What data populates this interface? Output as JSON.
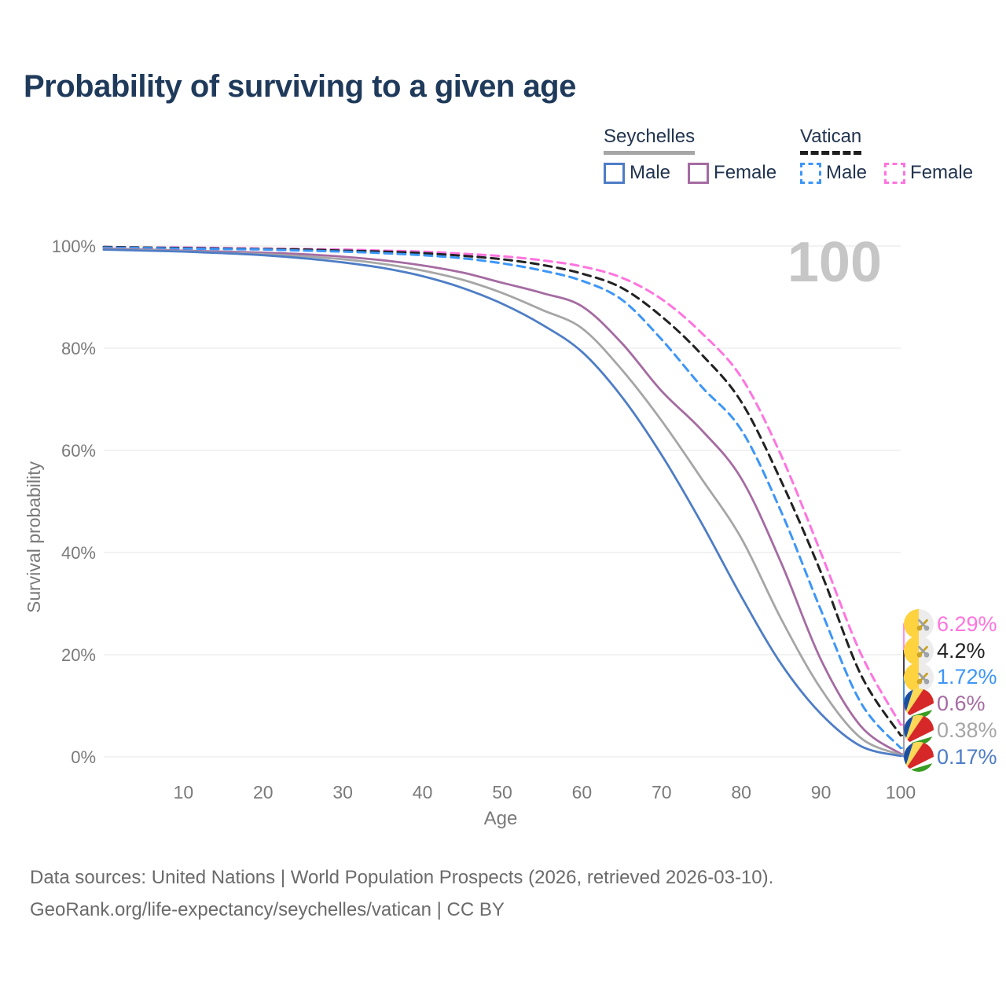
{
  "title": "Probability of surviving to a given age",
  "legend": {
    "groups": [
      {
        "title": "Seychelles",
        "items": [
          {
            "label": "Male",
            "series": 5
          },
          {
            "label": "Female",
            "series": 3
          }
        ]
      },
      {
        "title": "Vatican",
        "items": [
          {
            "label": "Male",
            "series": 2
          },
          {
            "label": "Female",
            "series": 0
          }
        ]
      }
    ]
  },
  "age_counter": "100",
  "chart_data": {
    "type": "line",
    "title": "Probability of surviving to a given age",
    "xlabel": "Age",
    "ylabel": "Survival probability",
    "xlim": [
      0,
      100
    ],
    "ylim": [
      0,
      100
    ],
    "grid": "horizontal",
    "x_ticks": [
      10,
      20,
      30,
      40,
      50,
      60,
      70,
      80,
      90,
      100
    ],
    "y_ticks": [
      0,
      20,
      40,
      60,
      80,
      100
    ],
    "y_tick_labels": [
      "0%",
      "20%",
      "40%",
      "60%",
      "80%",
      "100%"
    ],
    "x": [
      0,
      5,
      10,
      15,
      20,
      25,
      30,
      35,
      40,
      45,
      50,
      55,
      60,
      65,
      70,
      75,
      80,
      85,
      90,
      95,
      100
    ],
    "series": [
      {
        "name": "Vatican Female",
        "country": "Vatican",
        "sex": "Female",
        "color": "#ff74df",
        "dash": true,
        "end_label": "6.29%",
        "flag": "vatican",
        "values": [
          99.8,
          99.7,
          99.7,
          99.6,
          99.5,
          99.4,
          99.3,
          99.1,
          98.9,
          98.5,
          98.0,
          97.2,
          96.0,
          93.8,
          89.6,
          83.0,
          74.3,
          59.0,
          39.9,
          20.2,
          6.29
        ]
      },
      {
        "name": "Vatican Both sexes",
        "country": "Vatican",
        "sex": "Both",
        "color": "#222222",
        "dash": true,
        "end_label": "4.2%",
        "flag": "vatican",
        "values": [
          99.8,
          99.7,
          99.6,
          99.5,
          99.4,
          99.3,
          99.1,
          98.9,
          98.6,
          98.1,
          97.4,
          96.3,
          94.6,
          91.8,
          86.2,
          78.8,
          69.5,
          54.0,
          36.1,
          16.1,
          4.2
        ]
      },
      {
        "name": "Vatican Male",
        "country": "Vatican",
        "sex": "Male",
        "color": "#3d96f7",
        "dash": true,
        "end_label": "1.72%",
        "flag": "vatican",
        "values": [
          99.7,
          99.6,
          99.5,
          99.4,
          99.3,
          99.1,
          98.9,
          98.6,
          98.2,
          97.6,
          96.6,
          95.2,
          93.2,
          89.5,
          81.7,
          72.5,
          64.0,
          48.0,
          28.7,
          10.6,
          1.72
        ]
      },
      {
        "name": "Seychelles Female",
        "country": "Seychelles",
        "sex": "Female",
        "color": "#a56ba2",
        "dash": false,
        "end_label": "0.6%",
        "flag": "seychelles",
        "values": [
          99.5,
          99.3,
          99.1,
          98.9,
          98.7,
          98.4,
          97.9,
          97.2,
          96.2,
          94.8,
          92.8,
          90.8,
          88.2,
          81.0,
          71.6,
          64.0,
          54.5,
          38.0,
          19.0,
          6.0,
          0.6
        ]
      },
      {
        "name": "Seychelles Both sexes",
        "country": "Seychelles",
        "sex": "Both",
        "color": "#a6a6a6",
        "dash": false,
        "end_label": "0.38%",
        "flag": "seychelles",
        "values": [
          99.4,
          99.2,
          99.0,
          98.7,
          98.4,
          98.0,
          97.4,
          96.5,
          95.2,
          93.4,
          90.8,
          87.5,
          83.9,
          75.8,
          65.8,
          54.5,
          42.8,
          27.0,
          13.3,
          3.7,
          0.38
        ]
      },
      {
        "name": "Seychelles Male",
        "country": "Seychelles",
        "sex": "Male",
        "color": "#4e7dc6",
        "dash": false,
        "end_label": "0.17%",
        "flag": "seychelles",
        "values": [
          99.3,
          99.1,
          98.9,
          98.6,
          98.2,
          97.6,
          96.8,
          95.7,
          94.1,
          91.8,
          88.7,
          84.6,
          79.3,
          70.5,
          59.1,
          45.8,
          31.4,
          18.2,
          8.4,
          2.1,
          0.17
        ]
      }
    ]
  },
  "footer": {
    "line1": "Data sources: United Nations | World Population Prospects (2026, retrieved 2026-03-10).",
    "line2": "GeoRank.org/life-expectancy/seychelles/vatican | CC BY"
  }
}
